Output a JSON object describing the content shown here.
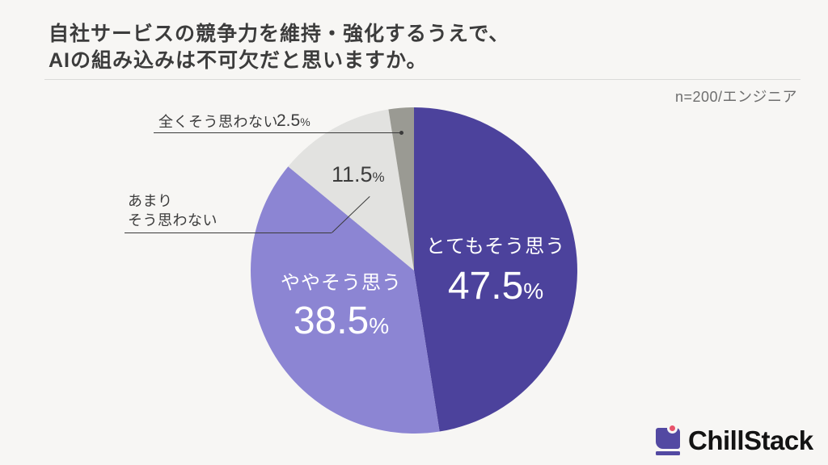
{
  "page": {
    "background": "#F7F6F4"
  },
  "header": {
    "title_line1": "自社サービスの競争力を維持・強化するうえで、",
    "title_line2": "AIの組み込みは不可欠だと思いますか。",
    "sample_note": "n=200/エンジニア"
  },
  "chart_data": {
    "type": "pie",
    "title": "自社サービスの競争力を維持・強化するうえで、AIの組み込みは不可欠だと思いますか。",
    "sample_note": "n=200/エンジニア",
    "unit": "%",
    "start_angle_deg": -90,
    "direction": "clockwise",
    "legend": "none",
    "segments": [
      {
        "label": "とてもそう思う",
        "value": 47.5,
        "color": "#4C429C",
        "text_color": "#FFFFFF",
        "label_placement": "inside"
      },
      {
        "label": "ややそう思う",
        "value": 38.5,
        "color": "#8C85D3",
        "text_color": "#FFFFFF",
        "label_placement": "inside"
      },
      {
        "label": "あまりそう思わない",
        "value": 11.5,
        "color": "#E2E2E0",
        "text_color": "#3C3C3C",
        "label_placement": "outside-left"
      },
      {
        "label": "全くそう思わない",
        "value": 2.5,
        "color": "#9A9A93",
        "text_color": "#3C3C3C",
        "label_placement": "outside-top"
      }
    ]
  },
  "display": {
    "percent_sign": "%",
    "amari_line1": "あまり",
    "amari_line2": "そう思わない"
  },
  "logo": {
    "text": "ChillStack",
    "mark_color": "#5349A2",
    "dot_color": "#E8536B"
  }
}
